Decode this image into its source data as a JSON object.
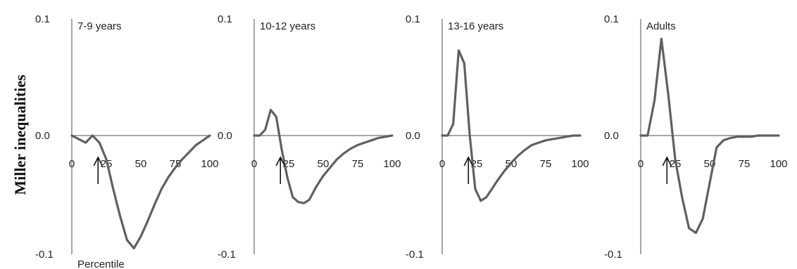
{
  "figure": {
    "ylabel": "Miller inequalities",
    "xlabel": "Percentile"
  },
  "chart_data": [
    {
      "type": "line",
      "title": "7-9 years",
      "xlim": [
        0,
        100
      ],
      "ylim": [
        -0.1,
        0.1
      ],
      "xticks": [
        "0",
        "25",
        "50",
        "75",
        "100"
      ],
      "yticks": [
        "0.1",
        "0.0",
        "-0.1"
      ],
      "arrow_x": 18,
      "x": [
        0,
        5,
        10,
        15,
        20,
        25,
        30,
        35,
        40,
        45,
        50,
        55,
        60,
        65,
        70,
        75,
        80,
        85,
        90,
        95,
        100
      ],
      "y": [
        0,
        -0.003,
        -0.006,
        0.0,
        -0.006,
        -0.02,
        -0.045,
        -0.068,
        -0.088,
        -0.095,
        -0.085,
        -0.072,
        -0.058,
        -0.045,
        -0.035,
        -0.027,
        -0.02,
        -0.014,
        -0.008,
        -0.004,
        0
      ]
    },
    {
      "type": "line",
      "title": "10-12 years",
      "xlim": [
        0,
        100
      ],
      "ylim": [
        -0.1,
        0.1
      ],
      "xticks": [
        "0",
        "25",
        "50",
        "75",
        "100"
      ],
      "yticks": [
        "0.1",
        "0.0",
        "-0.1"
      ],
      "arrow_x": 18,
      "x": [
        0,
        4,
        8,
        12,
        16,
        20,
        24,
        28,
        32,
        36,
        40,
        45,
        50,
        55,
        60,
        65,
        70,
        75,
        80,
        85,
        90,
        95,
        100
      ],
      "y": [
        0,
        0,
        0.005,
        0.022,
        0.016,
        -0.012,
        -0.035,
        -0.052,
        -0.056,
        -0.057,
        -0.054,
        -0.043,
        -0.034,
        -0.027,
        -0.02,
        -0.015,
        -0.011,
        -0.008,
        -0.006,
        -0.004,
        -0.002,
        -0.001,
        0
      ]
    },
    {
      "type": "line",
      "title": "13-16 years",
      "xlim": [
        0,
        100
      ],
      "ylim": [
        -0.1,
        0.1
      ],
      "xticks": [
        "0",
        "25",
        "50",
        "75",
        "100"
      ],
      "yticks": [
        "0.1",
        "0.0",
        "-0.1"
      ],
      "arrow_x": 18,
      "x": [
        0,
        4,
        8,
        12,
        16,
        20,
        24,
        28,
        32,
        36,
        40,
        45,
        50,
        55,
        60,
        65,
        70,
        75,
        80,
        85,
        90,
        95,
        100
      ],
      "y": [
        0,
        0,
        0.01,
        0.073,
        0.062,
        0.0,
        -0.045,
        -0.055,
        -0.052,
        -0.045,
        -0.038,
        -0.03,
        -0.023,
        -0.017,
        -0.012,
        -0.008,
        -0.006,
        -0.004,
        -0.003,
        -0.002,
        -0.001,
        0,
        0
      ]
    },
    {
      "type": "line",
      "title": "Adults",
      "xlim": [
        0,
        100
      ],
      "ylim": [
        -0.1,
        0.1
      ],
      "xticks": [
        "0",
        "25",
        "50",
        "75",
        "100"
      ],
      "yticks": [
        "0.1",
        "0.0",
        "-0.1"
      ],
      "arrow_x": 18,
      "x": [
        0,
        5,
        10,
        15,
        20,
        25,
        30,
        35,
        40,
        45,
        50,
        55,
        60,
        65,
        70,
        75,
        80,
        85,
        90,
        95,
        100
      ],
      "y": [
        0,
        0,
        0.03,
        0.083,
        0.035,
        -0.02,
        -0.052,
        -0.078,
        -0.082,
        -0.07,
        -0.04,
        -0.01,
        -0.004,
        -0.002,
        -0.001,
        -0.001,
        -0.001,
        0,
        0,
        0,
        0
      ]
    }
  ]
}
